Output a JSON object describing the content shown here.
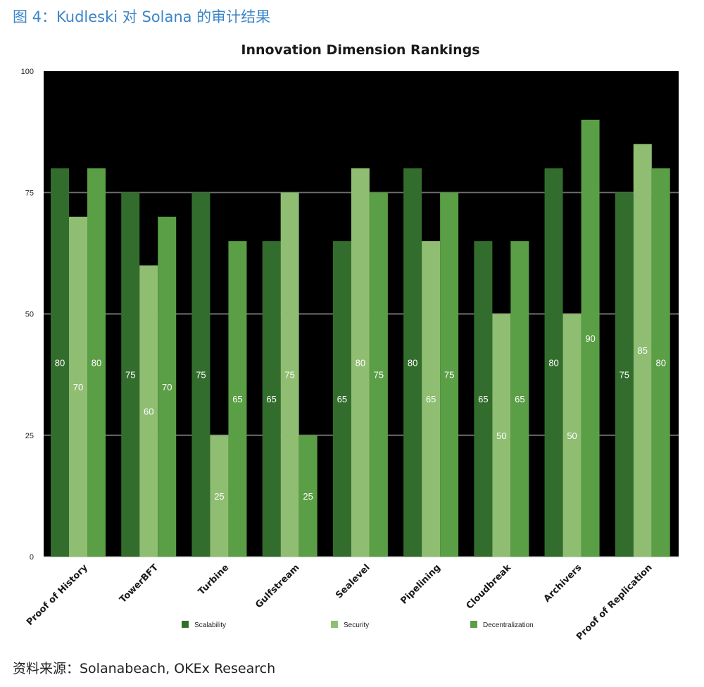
{
  "caption": "图 4：Kudleski 对 Solana 的审计结果",
  "source": "资料来源：Solanabeach, OKEx Research",
  "colors": {
    "background": "#000000",
    "grid": "#6e6e6e",
    "scalability": "#336d2d",
    "security": "#8fbe72",
    "decentralization": "#5a9e45"
  },
  "chart_data": {
    "type": "bar",
    "title": "Innovation Dimension Rankings",
    "xlabel": "",
    "ylabel": "",
    "ylim": [
      0,
      100
    ],
    "yticks": [
      0,
      25,
      50,
      75,
      100
    ],
    "grid": true,
    "legend_position": "bottom",
    "categories": [
      "Proof of History",
      "TowerBFT",
      "Turbine",
      "Gulfstream",
      "Sealevel",
      "Pipelining",
      "Cloudbreak",
      "Archivers",
      "Proof of Replication"
    ],
    "series": [
      {
        "name": "Scalability",
        "color": "#336d2d",
        "values": [
          80,
          75,
          75,
          65,
          65,
          80,
          65,
          80,
          75
        ]
      },
      {
        "name": "Security",
        "color": "#8fbe72",
        "values": [
          70,
          60,
          25,
          75,
          80,
          65,
          50,
          50,
          85
        ]
      },
      {
        "name": "Decentralization",
        "color": "#5a9e45",
        "values": [
          80,
          70,
          65,
          25,
          75,
          75,
          65,
          90,
          80
        ]
      }
    ]
  }
}
